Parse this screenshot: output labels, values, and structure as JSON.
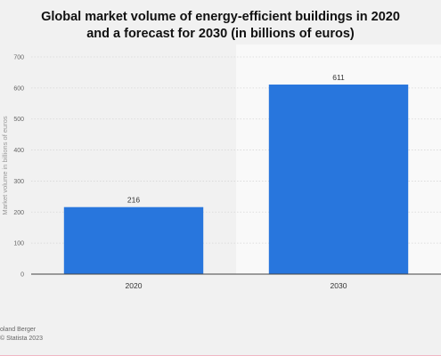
{
  "title_lines": [
    "Global market volume of energy-efficient buildings in 2020",
    "and a forecast for 2030 (in billions of euros)"
  ],
  "chart_data": {
    "type": "bar",
    "title": "Global market volume of energy-efficient buildings in 2020 and a forecast for 2030 (in billions of euros)",
    "categories": [
      "2020",
      "2030"
    ],
    "values": [
      216,
      611
    ],
    "data_labels": [
      "216",
      "611"
    ],
    "ylabel": "Market volume in billions of euros",
    "xlabel": "",
    "ylim": [
      0,
      700
    ],
    "yticks": [
      0,
      100,
      200,
      300,
      400,
      500,
      600,
      700
    ],
    "grid": true,
    "forecast_shading": "2030",
    "bar_color": "#2876dd"
  },
  "footer": {
    "source": "oland Berger",
    "copyright": "Statista 2023"
  }
}
